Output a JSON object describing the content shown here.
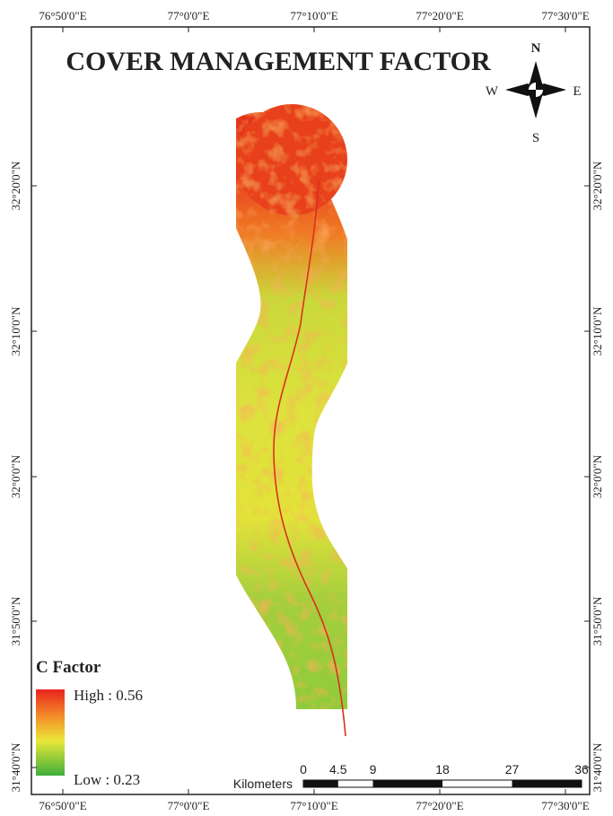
{
  "map": {
    "title": "COVER MANAGEMENT FACTOR",
    "longitudes": [
      "76°50'0\"E",
      "77°0'0\"E",
      "77°10'0\"E",
      "77°20'0\"E",
      "77°30'0\"E"
    ],
    "latitudes": [
      "32°20'0\"N",
      "32°10'0\"N",
      "32°0'0\"N",
      "31°50'0\"N",
      "31°40'0\"N"
    ],
    "compass": {
      "north": "N",
      "south": "S",
      "west": "W",
      "east": "E"
    },
    "legend": {
      "title": "C Factor",
      "high": "High : 0.56",
      "low": "Low : 0.23"
    },
    "scale_bar": {
      "unit": "Kilometers",
      "ticks": [
        0,
        4.5,
        9,
        18,
        27,
        36
      ]
    }
  }
}
